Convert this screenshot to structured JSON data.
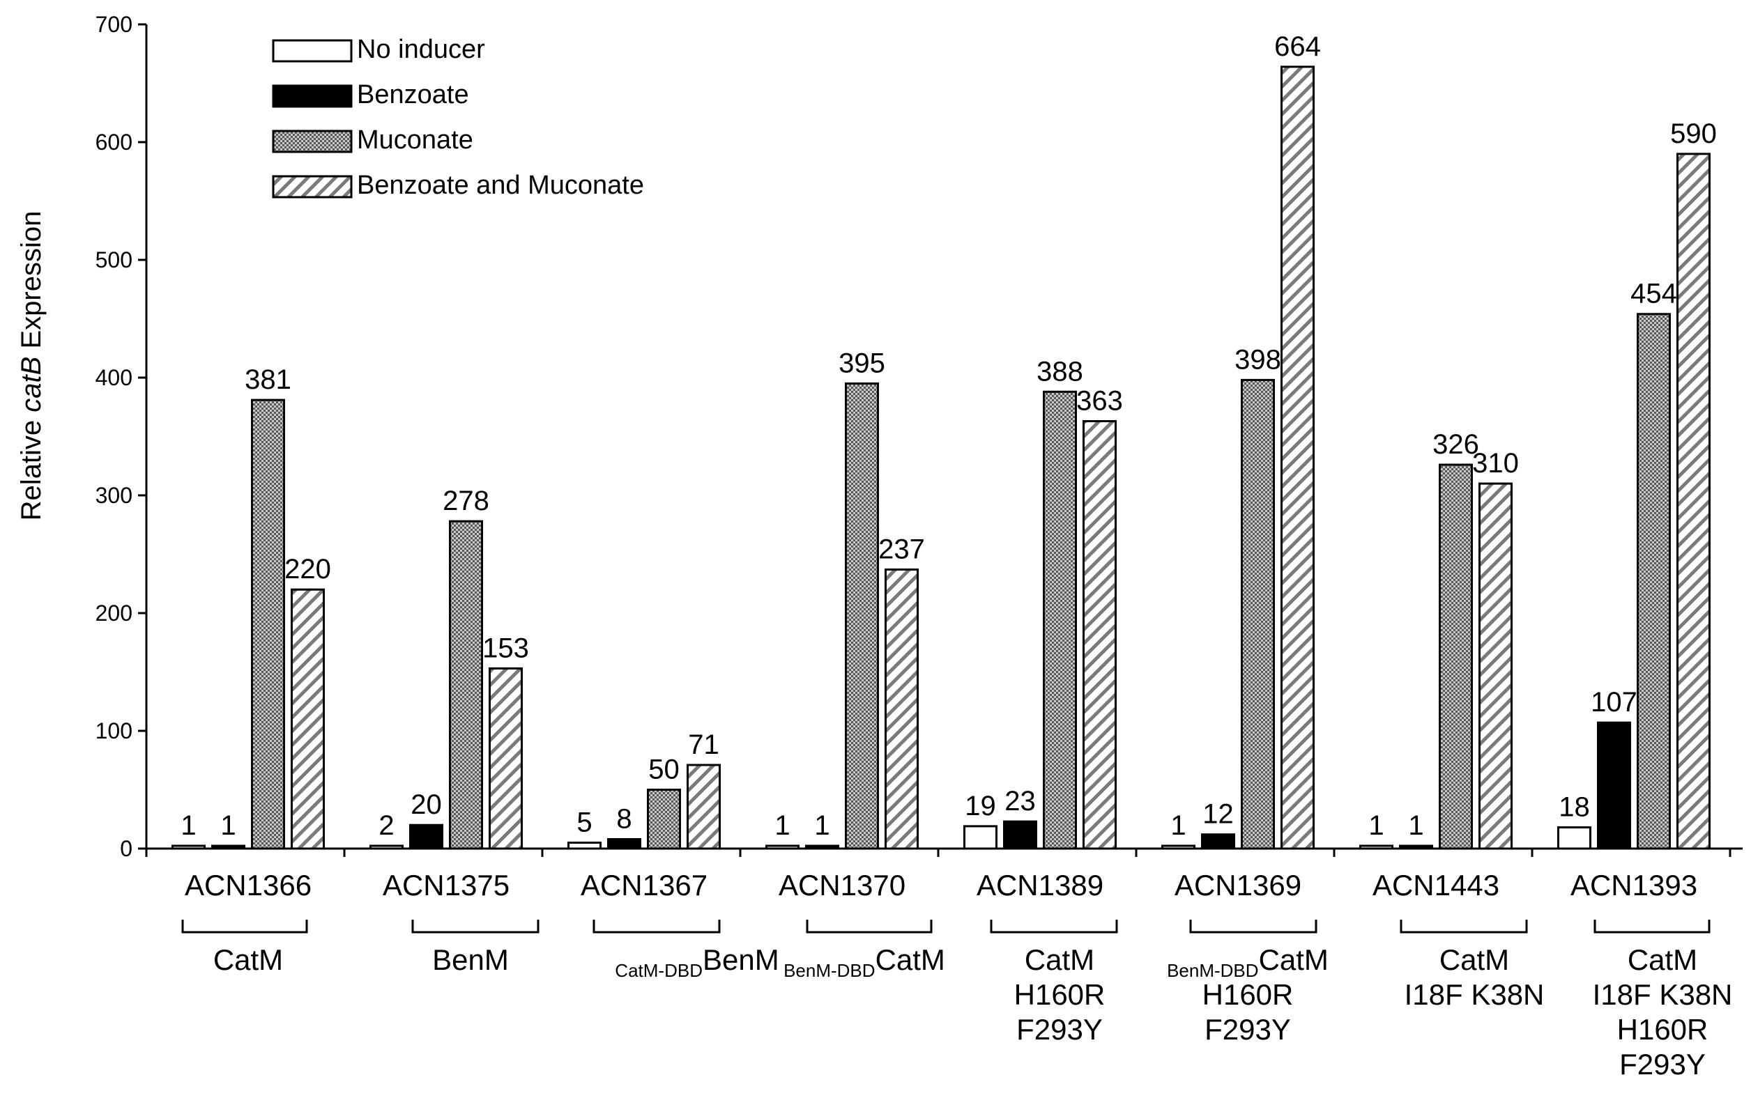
{
  "chart_data": {
    "type": "bar",
    "title": "",
    "xlabel": "",
    "ylabel_prefix": "Relative ",
    "ylabel_italic": "catB",
    "ylabel_suffix": " Expression",
    "ylim": [
      0,
      700
    ],
    "yticks": [
      "0",
      "100",
      "200",
      "300",
      "400",
      "500",
      "600",
      "700"
    ],
    "grid": false,
    "legend_position": "top-left",
    "categories": [
      "ACN1366",
      "ACN1375",
      "ACN1367",
      "ACN1370",
      "ACN1389",
      "ACN1369",
      "ACN1443",
      "ACN1393"
    ],
    "series": [
      {
        "name": "No inducer",
        "pattern": "white",
        "values": [
          1,
          2,
          5,
          1,
          19,
          1,
          1,
          18
        ],
        "labels": [
          "1",
          "2",
          "5",
          "1",
          "19",
          "1",
          "1",
          "18"
        ]
      },
      {
        "name": "Benzoate",
        "pattern": "black",
        "values": [
          1,
          20,
          8,
          1,
          23,
          12,
          1,
          107
        ],
        "labels": [
          "1",
          "20",
          "8",
          "1",
          "23",
          "12",
          "1",
          "107"
        ]
      },
      {
        "name": "Muconate",
        "pattern": "dots",
        "values": [
          381,
          278,
          50,
          395,
          388,
          398,
          326,
          454
        ],
        "labels": [
          "381",
          "278",
          "50",
          "395",
          "388",
          "398",
          "326",
          "454"
        ]
      },
      {
        "name": "Benzoate and Muconate",
        "pattern": "hatch",
        "values": [
          220,
          153,
          71,
          237,
          363,
          664,
          310,
          590
        ],
        "labels": [
          "220",
          "153",
          "71",
          "237",
          "363",
          "664",
          "310",
          "590"
        ]
      }
    ],
    "groups": [
      {
        "lines": [
          {
            "sub": "",
            "main": "CatM"
          }
        ]
      },
      {
        "lines": [
          {
            "sub": "",
            "main": "BenM"
          }
        ]
      },
      {
        "lines": [
          {
            "sub": "CatM-DBD",
            "main": "BenM"
          }
        ]
      },
      {
        "lines": [
          {
            "sub": "BenM-DBD",
            "main": "CatM"
          }
        ]
      },
      {
        "lines": [
          {
            "sub": "",
            "main": "CatM"
          },
          {
            "sub": "",
            "main": "H160R"
          },
          {
            "sub": "",
            "main": "F293Y"
          }
        ]
      },
      {
        "lines": [
          {
            "sub": "BenM-DBD",
            "main": "CatM"
          },
          {
            "sub": "",
            "main": "H160R"
          },
          {
            "sub": "",
            "main": "F293Y"
          }
        ]
      },
      {
        "lines": [
          {
            "sub": "",
            "main": "CatM"
          },
          {
            "sub": "",
            "main": "I18F K38N"
          }
        ]
      },
      {
        "lines": [
          {
            "sub": "",
            "main": "CatM"
          },
          {
            "sub": "",
            "main": "I18F K38N"
          },
          {
            "sub": "",
            "main": "H160R"
          },
          {
            "sub": "",
            "main": "F293Y"
          }
        ]
      }
    ]
  }
}
